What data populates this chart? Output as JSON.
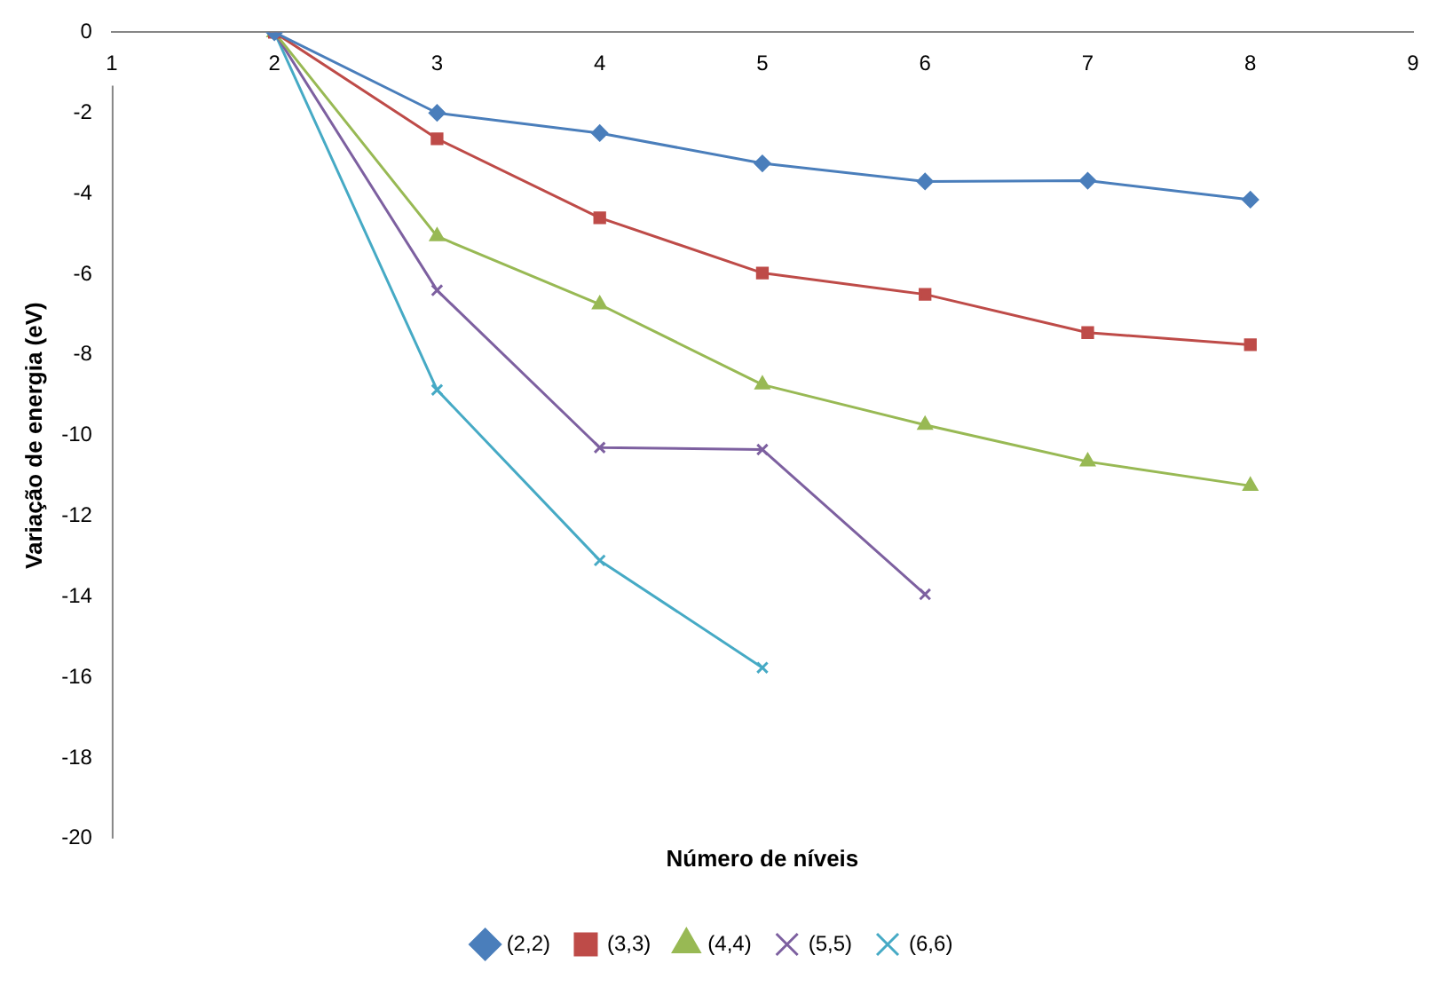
{
  "chart_data": {
    "type": "line",
    "xlabel": "Número de níveis",
    "ylabel": "Variação de energia (eV)",
    "xlim": [
      1,
      9
    ],
    "xticks": [
      1,
      2,
      3,
      4,
      5,
      6,
      7,
      8,
      9
    ],
    "ylim": [
      -20,
      0
    ],
    "yticks": [
      0,
      -2,
      -4,
      -6,
      -8,
      -10,
      -12,
      -14,
      -16,
      -18,
      -20
    ],
    "grid": false,
    "legend": "bottom",
    "line_style": "solid",
    "series": [
      {
        "name": "(2,2)",
        "color": "#4a7ebb",
        "marker": "diamond",
        "x": [
          2,
          3,
          4,
          5,
          6,
          7,
          8
        ],
        "values": [
          0,
          -2.0,
          -2.5,
          -3.25,
          -3.7,
          -3.68,
          -4.15
        ]
      },
      {
        "name": "(3,3)",
        "color": "#be4b48",
        "marker": "square",
        "x": [
          2,
          3,
          4,
          5,
          6,
          7,
          8
        ],
        "values": [
          0,
          -2.64,
          -4.6,
          -5.97,
          -6.5,
          -7.45,
          -7.75
        ]
      },
      {
        "name": "(4,4)",
        "color": "#98b954",
        "marker": "triangle",
        "x": [
          2,
          3,
          4,
          5,
          6,
          7,
          8
        ],
        "values": [
          0,
          -5.06,
          -6.75,
          -8.74,
          -9.74,
          -10.65,
          -11.25
        ]
      },
      {
        "name": "(5,5)",
        "color": "#7d60a0",
        "marker": "cross",
        "x": [
          2,
          3,
          4,
          5,
          6
        ],
        "values": [
          0,
          -6.4,
          -10.3,
          -10.35,
          -13.94
        ]
      },
      {
        "name": "(6,6)",
        "color": "#46aac5",
        "marker": "cross",
        "x": [
          2,
          3,
          4,
          5
        ],
        "values": [
          0,
          -8.87,
          -13.1,
          -15.76
        ]
      }
    ]
  }
}
